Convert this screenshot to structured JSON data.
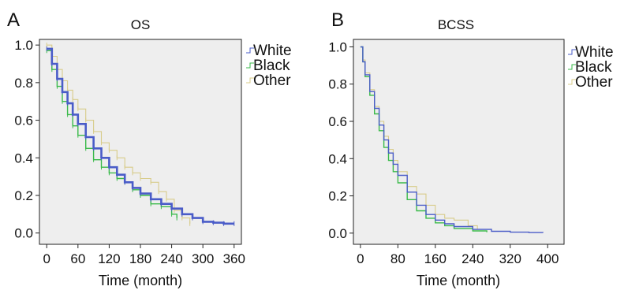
{
  "chart_data": [
    {
      "type": "line",
      "panel": "A",
      "title": "OS",
      "xlabel": "Time (month)",
      "ylabel": "",
      "xlim": [
        -14,
        374
      ],
      "ylim": [
        -0.06,
        1.03
      ],
      "xticks": [
        0,
        60,
        120,
        180,
        240,
        300,
        360
      ],
      "xtick_labels": [
        "0",
        "60",
        "120",
        "180",
        "240",
        "300",
        "360"
      ],
      "yticks": [
        0.0,
        0.2,
        0.4,
        0.6,
        0.8,
        1.0
      ],
      "ytick_labels": [
        "0.0",
        "0.2",
        "0.4",
        "0.6",
        "0.8",
        "1.0"
      ],
      "background": "#eeeeee",
      "legend_position": "right-top",
      "series": [
        {
          "name": "White",
          "color": "#4a5cc8",
          "x": [
            0,
            10,
            20,
            30,
            40,
            50,
            60,
            75,
            90,
            105,
            120,
            135,
            150,
            165,
            180,
            200,
            220,
            240,
            260,
            280,
            300,
            320,
            340,
            360
          ],
          "y": [
            0.98,
            0.9,
            0.82,
            0.75,
            0.69,
            0.63,
            0.58,
            0.51,
            0.45,
            0.4,
            0.35,
            0.31,
            0.27,
            0.24,
            0.21,
            0.18,
            0.155,
            0.13,
            0.1,
            0.08,
            0.06,
            0.055,
            0.05,
            0.05
          ]
        },
        {
          "name": "Black",
          "color": "#3aba4a",
          "x": [
            0,
            10,
            20,
            30,
            40,
            50,
            60,
            75,
            90,
            105,
            120,
            135,
            150,
            165,
            180,
            200,
            220,
            240,
            250
          ],
          "y": [
            0.97,
            0.87,
            0.78,
            0.7,
            0.63,
            0.57,
            0.52,
            0.45,
            0.39,
            0.35,
            0.32,
            0.29,
            0.27,
            0.23,
            0.2,
            0.155,
            0.14,
            0.1,
            0.08
          ]
        },
        {
          "name": "Other",
          "color": "#d8cc8a",
          "x": [
            0,
            10,
            20,
            30,
            40,
            50,
            60,
            75,
            90,
            105,
            120,
            135,
            150,
            165,
            180,
            200,
            215,
            230,
            245,
            260,
            275
          ],
          "y": [
            1.0,
            0.94,
            0.87,
            0.81,
            0.76,
            0.71,
            0.66,
            0.6,
            0.54,
            0.48,
            0.44,
            0.4,
            0.35,
            0.32,
            0.29,
            0.27,
            0.22,
            0.18,
            0.12,
            0.08,
            0.05
          ]
        }
      ]
    },
    {
      "type": "line",
      "panel": "B",
      "title": "BCSS",
      "xlabel": "Time (month)",
      "ylabel": "",
      "xlim": [
        -15,
        435
      ],
      "ylim": [
        -0.06,
        1.04
      ],
      "xticks": [
        0,
        80,
        160,
        240,
        320,
        400
      ],
      "xtick_labels": [
        "0",
        "80",
        "160",
        "240",
        "320",
        "400"
      ],
      "yticks": [
        0.0,
        0.2,
        0.4,
        0.6,
        0.8,
        1.0
      ],
      "ytick_labels": [
        "0.0",
        "0.2",
        "0.4",
        "0.6",
        "0.8",
        "1.0"
      ],
      "background": "#eeeeee",
      "legend_position": "right-top",
      "series": [
        {
          "name": "White",
          "color": "#4a5cc8",
          "x": [
            0,
            5,
            10,
            20,
            30,
            40,
            50,
            60,
            70,
            80,
            100,
            120,
            140,
            160,
            180,
            200,
            240,
            280,
            320,
            360,
            390
          ],
          "y": [
            1.0,
            0.92,
            0.85,
            0.76,
            0.67,
            0.58,
            0.5,
            0.43,
            0.37,
            0.31,
            0.22,
            0.15,
            0.1,
            0.07,
            0.05,
            0.035,
            0.02,
            0.01,
            0.005,
            0.003,
            0.002
          ]
        },
        {
          "name": "Black",
          "color": "#3aba4a",
          "x": [
            0,
            5,
            10,
            20,
            30,
            40,
            50,
            60,
            70,
            80,
            100,
            120,
            140,
            160,
            180,
            200,
            240,
            270
          ],
          "y": [
            1.0,
            0.92,
            0.84,
            0.74,
            0.64,
            0.55,
            0.46,
            0.39,
            0.33,
            0.27,
            0.18,
            0.12,
            0.08,
            0.055,
            0.04,
            0.025,
            0.012,
            0.005
          ]
        },
        {
          "name": "Other",
          "color": "#d8cc8a",
          "x": [
            0,
            5,
            10,
            20,
            30,
            40,
            50,
            60,
            70,
            80,
            100,
            120,
            140,
            160,
            180,
            200,
            230,
            250
          ],
          "y": [
            1.0,
            0.93,
            0.86,
            0.77,
            0.68,
            0.6,
            0.52,
            0.45,
            0.39,
            0.33,
            0.25,
            0.21,
            0.15,
            0.1,
            0.08,
            0.07,
            0.04,
            0.02
          ]
        }
      ]
    }
  ]
}
